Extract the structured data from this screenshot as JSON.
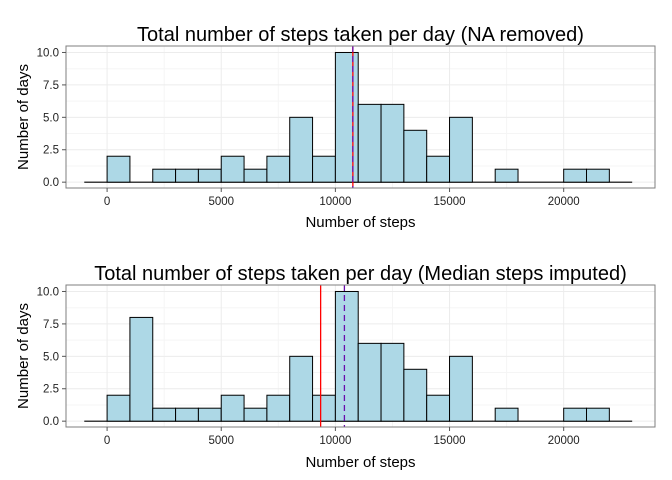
{
  "chart_data": [
    {
      "type": "bar",
      "title": "Total number of steps taken per day (NA removed)",
      "xlabel": "Number of steps",
      "ylabel": "Number of days",
      "xlim": [
        -1800,
        24000
      ],
      "ylim": [
        -0.45,
        10.5
      ],
      "x_ticks": [
        0,
        5000,
        10000,
        15000,
        20000
      ],
      "x_tick_labels": [
        "0",
        "5000",
        "10000",
        "15000",
        "20000"
      ],
      "y_ticks": [
        0,
        2.5,
        5,
        7.5,
        10
      ],
      "y_tick_labels": [
        "0.0",
        "2.5",
        "5.0",
        "7.5",
        "10.0"
      ],
      "grid": true,
      "bin_width": 1000,
      "bin_starts": [
        -1000,
        0,
        1000,
        2000,
        3000,
        4000,
        5000,
        6000,
        7000,
        8000,
        9000,
        10000,
        11000,
        12000,
        13000,
        14000,
        15000,
        16000,
        17000,
        18000,
        19000,
        20000,
        21000,
        22000
      ],
      "values": [
        0,
        2,
        0,
        1,
        1,
        1,
        2,
        1,
        2,
        5,
        2,
        10,
        6,
        6,
        4,
        2,
        5,
        0,
        1,
        0,
        0,
        1,
        1,
        0
      ],
      "reference_lines": [
        {
          "value": 10766.19,
          "color": "#ff0000",
          "style": "solid"
        },
        {
          "value": 10765,
          "color": "#6a0dad",
          "style": "dashed"
        }
      ]
    },
    {
      "type": "bar",
      "title": "Total number of steps taken per day (Median steps imputed)",
      "xlabel": "Number of steps",
      "ylabel": "Number of days",
      "xlim": [
        -1800,
        24000
      ],
      "ylim": [
        -0.45,
        10.5
      ],
      "x_ticks": [
        0,
        5000,
        10000,
        15000,
        20000
      ],
      "x_tick_labels": [
        "0",
        "5000",
        "10000",
        "15000",
        "20000"
      ],
      "y_ticks": [
        0,
        2.5,
        5,
        7.5,
        10
      ],
      "y_tick_labels": [
        "0.0",
        "2.5",
        "5.0",
        "7.5",
        "10.0"
      ],
      "grid": true,
      "bin_width": 1000,
      "bin_starts": [
        -1000,
        0,
        1000,
        2000,
        3000,
        4000,
        5000,
        6000,
        7000,
        8000,
        9000,
        10000,
        11000,
        12000,
        13000,
        14000,
        15000,
        16000,
        17000,
        18000,
        19000,
        20000,
        21000,
        22000
      ],
      "values": [
        0,
        2,
        8,
        1,
        1,
        1,
        2,
        1,
        2,
        5,
        2,
        10,
        6,
        6,
        4,
        2,
        5,
        0,
        1,
        0,
        0,
        1,
        1,
        0
      ],
      "reference_lines": [
        {
          "value": 9354,
          "color": "#ff0000",
          "style": "solid"
        },
        {
          "value": 10395,
          "color": "#6a0dad",
          "style": "dashed"
        }
      ]
    }
  ]
}
